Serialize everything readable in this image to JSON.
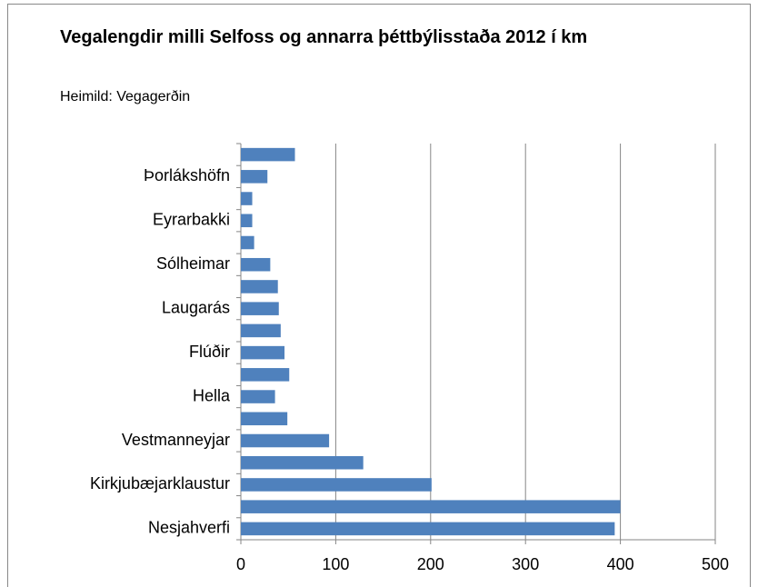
{
  "chart_data": {
    "type": "barh",
    "title": "Vegalengdir milli Selfoss og annarra þéttbýlisstaða 2012 í km",
    "subtitle": "Heimild: Vegagerðin",
    "categories": [
      "Nesjahverfi",
      null,
      "Kirkjubæjarklaustur",
      null,
      "Vestmanneyjar",
      null,
      "Hella",
      null,
      "Flúðir",
      null,
      "Laugarás",
      null,
      "Sólheimar",
      null,
      "Eyrarbakki",
      null,
      "Þorlákshöfn",
      null
    ],
    "values": [
      394,
      400,
      201,
      129,
      93,
      49,
      36,
      51,
      46,
      42,
      40,
      39,
      31,
      14,
      12,
      12,
      28,
      57
    ],
    "color": "#4f81bd",
    "xlim": [
      0,
      500
    ],
    "xticks": [
      0,
      100,
      200,
      300,
      400,
      500
    ],
    "grid": true
  }
}
